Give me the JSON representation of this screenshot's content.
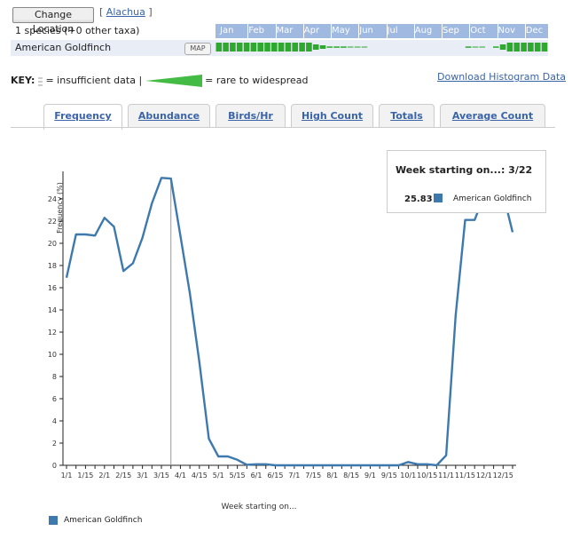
{
  "header": {
    "change_location_label": "Change Location",
    "region_open": "[",
    "region_link": "Alachua",
    "region_close": "]",
    "species_count": "1 species (+0 other taxa)",
    "months": [
      "Jan",
      "Feb",
      "Mar",
      "Apr",
      "May",
      "Jun",
      "Jul",
      "Aug",
      "Sep",
      "Oct",
      "Nov",
      "Dec"
    ]
  },
  "species_row": {
    "name": "American Goldfinch",
    "map_label": "MAP"
  },
  "key": {
    "prefix": "KEY:",
    "insufficient": "= insufficient data |",
    "rare_to_widespread": "= rare to widespread"
  },
  "download_label": "Download Histogram Data",
  "tabs": [
    {
      "label": "Frequency",
      "active": true
    },
    {
      "label": "Abundance",
      "active": false
    },
    {
      "label": "Birds/Hr",
      "active": false
    },
    {
      "label": "High Count",
      "active": false
    },
    {
      "label": "Totals",
      "active": false
    },
    {
      "label": "Average Count",
      "active": false
    }
  ],
  "tooltip": {
    "title": "Week starting on...: 3/22",
    "value": "25.83",
    "series": "American Goldfinch"
  },
  "legend": {
    "series": "American Goldfinch",
    "color": "#3e79ae"
  },
  "chart_data": {
    "type": "line",
    "xlabel": "Week starting on...",
    "ylabel": "Frequency (%)",
    "ylim": [
      0,
      26
    ],
    "yticks": [
      0,
      2,
      4,
      6,
      8,
      10,
      12,
      14,
      16,
      18,
      20,
      22,
      24
    ],
    "xticklabels": [
      "1/1",
      "1/15",
      "2/1",
      "2/15",
      "3/1",
      "3/15",
      "4/1",
      "4/15",
      "5/1",
      "5/15",
      "6/1",
      "6/15",
      "7/1",
      "7/15",
      "8/1",
      "8/15",
      "9/1",
      "9/15",
      "10/1",
      "10/15",
      "11/1",
      "11/15",
      "12/1",
      "12/15"
    ],
    "series": [
      {
        "name": "American Goldfinch",
        "color": "#3e79ae",
        "values": [
          16.9,
          20.8,
          20.8,
          20.7,
          22.3,
          21.5,
          17.5,
          18.2,
          20.5,
          23.6,
          25.9,
          25.83,
          20.7,
          15.5,
          9.3,
          2.4,
          0.8,
          0.8,
          0.5,
          0.05,
          0.1,
          0.1,
          0,
          0,
          0,
          0,
          0,
          0,
          0,
          0,
          0,
          0,
          0,
          0,
          0,
          0,
          0.3,
          0.1,
          0.1,
          0,
          0.9,
          13.5,
          22.1,
          22.1,
          24.3,
          25.6,
          24.5,
          21.0
        ],
        "note_highlight_index": 11
      }
    ]
  }
}
